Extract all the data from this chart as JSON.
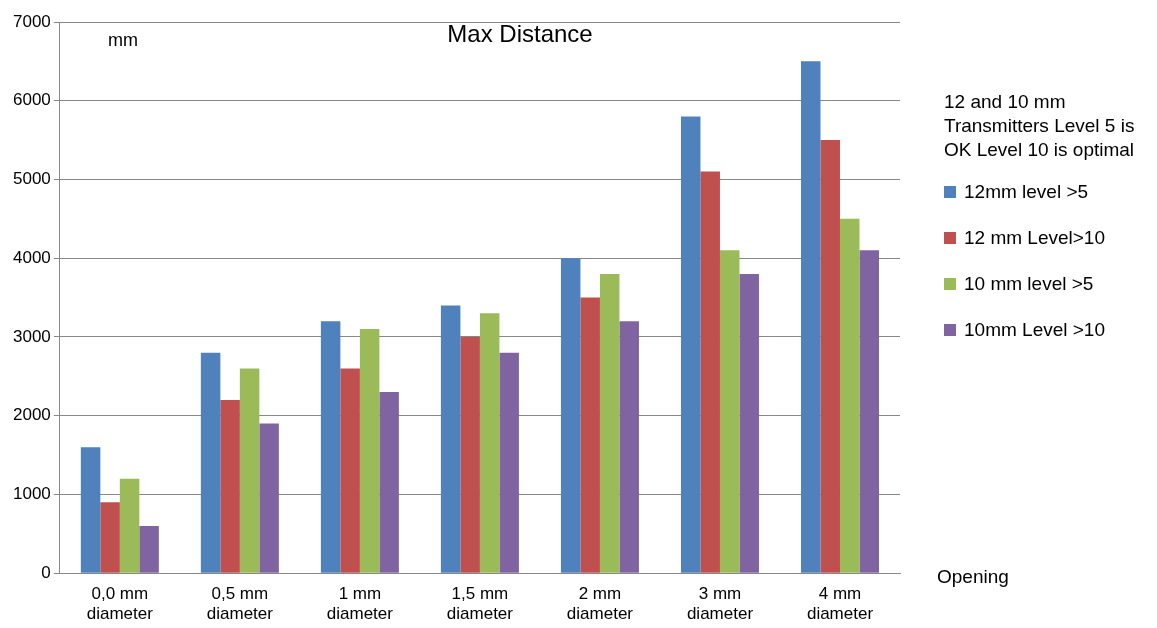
{
  "chart_data": {
    "type": "bar",
    "title": "Max Distance",
    "ylabel": "mm",
    "xlabel": "Opening",
    "legend_title": "12 and 10 mm Transmitters Level 5 is OK Level 10 is optimal",
    "categories": [
      "0,0 mm diameter",
      "0,5 mm diameter",
      "1 mm diameter",
      "1,5 mm diameter",
      "2 mm diameter",
      "3 mm diameter",
      "4 mm diameter"
    ],
    "series": [
      {
        "name": "12mm level >5",
        "color": "#4f81bd",
        "values": [
          1600,
          2800,
          3200,
          3400,
          4000,
          5800,
          6500
        ]
      },
      {
        "name": "12 mm Level>10",
        "color": "#c0504d",
        "values": [
          900,
          2200,
          2600,
          3000,
          3500,
          5100,
          5500
        ]
      },
      {
        "name": "10 mm level >5",
        "color": "#9bbb59",
        "values": [
          1200,
          2600,
          3100,
          3300,
          3800,
          4100,
          4500
        ]
      },
      {
        "name": "10mm Level >10",
        "color": "#8064a2",
        "values": [
          600,
          1900,
          2300,
          2800,
          3200,
          3800,
          4100
        ]
      }
    ],
    "ylim": [
      0,
      7000
    ],
    "yticks": [
      0,
      1000,
      2000,
      3000,
      4000,
      5000,
      6000,
      7000
    ],
    "grid": "y",
    "legend": "right"
  }
}
